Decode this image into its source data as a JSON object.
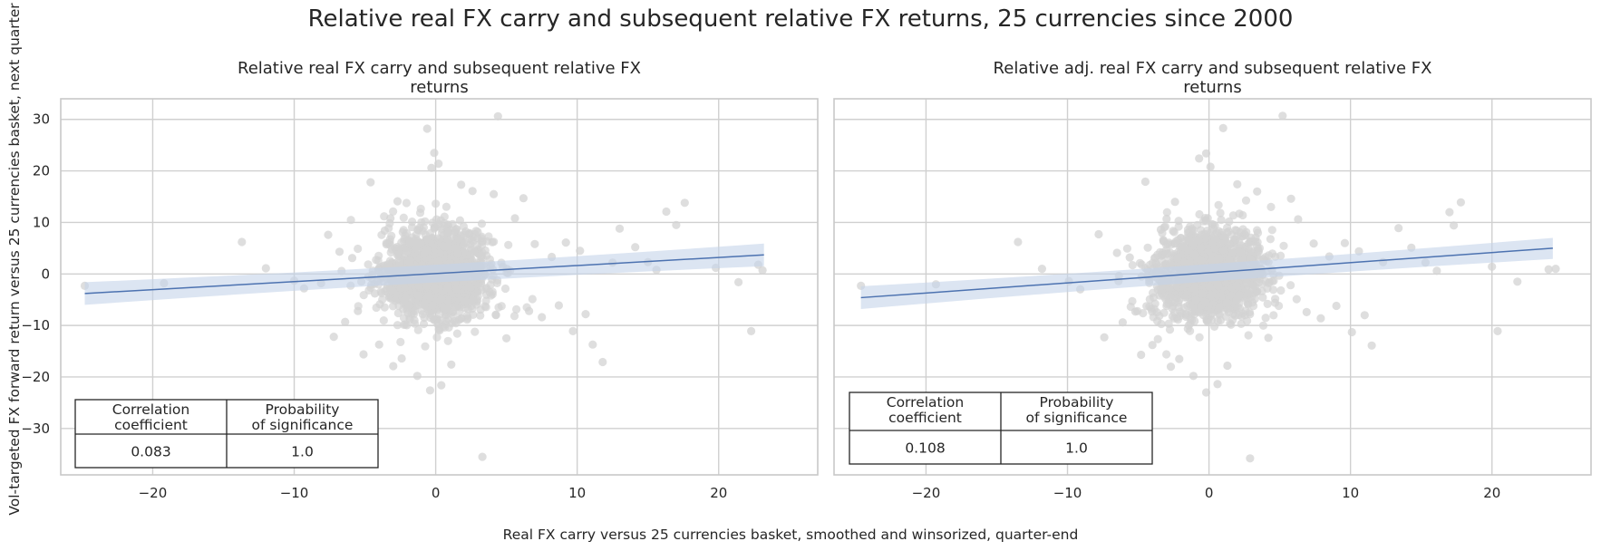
{
  "figure": {
    "suptitle": "Relative real FX carry and subsequent relative FX returns, 25 currencies since 2000",
    "xlabel": "Real FX carry versus 25 currencies basket, smoothed and winsorized, quarter-end",
    "ylabel": "Vol-targeted FX forward return versus 25 currencies basket, next quarter"
  },
  "colors": {
    "points": "#d3d3d3",
    "regression_line": "#4c72b0",
    "confidence_band": "#c5d3ea",
    "grid": "#d0d0d0",
    "spine": "#c8c8c8"
  },
  "chart_data": [
    {
      "type": "scatter",
      "title": [
        "Relative real FX carry and subsequent relative FX",
        "returns"
      ],
      "xlim": [
        -26.5,
        27
      ],
      "ylim": [
        -39,
        34
      ],
      "xticks": [
        -20,
        -10,
        0,
        10,
        20
      ],
      "xtick_labels": [
        "−20",
        "−10",
        "0",
        "10",
        "20"
      ],
      "yticks": [
        -30,
        -20,
        -10,
        0,
        10,
        20,
        30
      ],
      "ytick_labels": [
        "−30",
        "−20",
        "−10",
        "0",
        "10",
        "20",
        "30"
      ],
      "grid": true,
      "regression": {
        "x": [
          -24.8,
          23.2
        ],
        "y": [
          -3.8,
          3.7
        ],
        "band_start": [
          -6.0,
          -1.6
        ],
        "band_end": [
          1.5,
          5.9
        ]
      },
      "stats_table": {
        "headers": [
          [
            "Correlation",
            "coefficient"
          ],
          [
            "Probability",
            "of significance"
          ]
        ],
        "values": [
          "0.083",
          "1.0"
        ]
      },
      "outliers": [
        [
          -24.8,
          -2.3
        ],
        [
          -19.2,
          -1.8
        ],
        [
          -13.7,
          6.2
        ],
        [
          -12.0,
          1.1
        ],
        [
          -10.0,
          -1.3
        ],
        [
          -9.3,
          -2.8
        ],
        [
          -8.1,
          -1.8
        ],
        [
          -7.6,
          7.6
        ],
        [
          -7.2,
          -12.2
        ],
        [
          -6.8,
          4.3
        ],
        [
          -6.4,
          -9.3
        ],
        [
          -5.9,
          3.1
        ],
        [
          -5.5,
          -7.2
        ],
        [
          -5.1,
          -15.6
        ],
        [
          -4.6,
          17.8
        ],
        [
          -4.3,
          -3.8
        ],
        [
          -4.0,
          -13.7
        ],
        [
          -3.6,
          8.4
        ],
        [
          -3.2,
          10.8
        ],
        [
          -3.0,
          -17.9
        ],
        [
          -2.7,
          14.1
        ],
        [
          -2.4,
          -16.4
        ],
        [
          -1.3,
          -19.8
        ],
        [
          -0.6,
          28.2
        ],
        [
          -0.3,
          20.6
        ],
        [
          -0.4,
          -22.6
        ],
        [
          -0.1,
          23.5
        ],
        [
          0.2,
          21.4
        ],
        [
          0.4,
          -21.6
        ],
        [
          1.1,
          -17.6
        ],
        [
          1.8,
          17.3
        ],
        [
          2.6,
          16.1
        ],
        [
          3.3,
          -35.5
        ],
        [
          4.4,
          30.6
        ],
        [
          4.1,
          15.5
        ],
        [
          5.0,
          -12.5
        ],
        [
          5.6,
          10.8
        ],
        [
          6.2,
          14.7
        ],
        [
          6.6,
          -7.2
        ],
        [
          7.0,
          5.8
        ],
        [
          7.5,
          -8.4
        ],
        [
          8.2,
          3.3
        ],
        [
          8.7,
          -6.1
        ],
        [
          9.2,
          6.1
        ],
        [
          9.7,
          -11.1
        ],
        [
          10.2,
          4.5
        ],
        [
          10.6,
          -7.8
        ],
        [
          11.1,
          -13.7
        ],
        [
          11.8,
          -17.1
        ],
        [
          12.5,
          2.2
        ],
        [
          13.0,
          8.8
        ],
        [
          14.1,
          5.2
        ],
        [
          15.0,
          2.3
        ],
        [
          15.6,
          0.8
        ],
        [
          16.3,
          12.1
        ],
        [
          17.0,
          9.5
        ],
        [
          17.6,
          13.8
        ],
        [
          19.8,
          1.2
        ],
        [
          21.4,
          -1.6
        ],
        [
          22.3,
          -11.1
        ],
        [
          22.8,
          1.8
        ],
        [
          23.1,
          0.7
        ]
      ]
    },
    {
      "type": "scatter",
      "title": [
        "Relative adj. real FX carry and subsequent relative FX",
        "returns"
      ],
      "xlim": [
        -26.5,
        27
      ],
      "ylim": [
        -39,
        34
      ],
      "xticks": [
        -20,
        -10,
        0,
        10,
        20
      ],
      "xtick_labels": [
        "−20",
        "−10",
        "0",
        "10",
        "20"
      ],
      "yticks": [
        -30,
        -20,
        -10,
        0,
        10,
        20,
        30
      ],
      "ytick_labels": [
        "",
        "",
        "",
        "",
        "",
        "",
        ""
      ],
      "grid": true,
      "regression": {
        "x": [
          -24.6,
          24.3
        ],
        "y": [
          -4.6,
          5.0
        ],
        "band_start": [
          -6.8,
          -2.4
        ],
        "band_end": [
          2.9,
          7.0
        ]
      },
      "stats_table": {
        "headers": [
          [
            "Correlation",
            "coefficient"
          ],
          [
            "Probability",
            "of significance"
          ]
        ],
        "values": [
          "0.108",
          "1.0"
        ]
      },
      "outliers": [
        [
          -24.6,
          -2.3
        ],
        [
          -19.3,
          -2.0
        ],
        [
          -13.5,
          6.2
        ],
        [
          -11.8,
          1.0
        ],
        [
          -9.9,
          -1.4
        ],
        [
          -9.1,
          -3.0
        ],
        [
          -7.8,
          7.7
        ],
        [
          -7.4,
          -12.3
        ],
        [
          -6.5,
          4.1
        ],
        [
          -6.1,
          -9.4
        ],
        [
          -5.6,
          3.2
        ],
        [
          -5.2,
          -7.3
        ],
        [
          -4.8,
          -15.7
        ],
        [
          -4.5,
          17.9
        ],
        [
          -4.0,
          -13.8
        ],
        [
          -3.4,
          8.6
        ],
        [
          -3.0,
          10.7
        ],
        [
          -2.7,
          -18.0
        ],
        [
          -2.4,
          14.0
        ],
        [
          -2.1,
          -16.5
        ],
        [
          -1.1,
          -19.8
        ],
        [
          -0.7,
          22.4
        ],
        [
          -0.2,
          23.4
        ],
        [
          0.1,
          20.8
        ],
        [
          -0.2,
          -23.0
        ],
        [
          0.6,
          -21.4
        ],
        [
          1.0,
          28.3
        ],
        [
          1.3,
          -17.8
        ],
        [
          2.0,
          17.4
        ],
        [
          2.9,
          -35.8
        ],
        [
          3.4,
          16.0
        ],
        [
          4.2,
          -12.4
        ],
        [
          5.2,
          30.7
        ],
        [
          5.8,
          14.6
        ],
        [
          6.3,
          10.6
        ],
        [
          6.9,
          -7.4
        ],
        [
          7.4,
          5.9
        ],
        [
          7.9,
          -8.6
        ],
        [
          8.5,
          3.4
        ],
        [
          9.0,
          -6.2
        ],
        [
          9.6,
          6.0
        ],
        [
          10.1,
          -11.3
        ],
        [
          10.6,
          4.4
        ],
        [
          11.0,
          -8.0
        ],
        [
          11.5,
          -13.9
        ],
        [
          12.3,
          2.3
        ],
        [
          13.4,
          8.9
        ],
        [
          14.3,
          5.1
        ],
        [
          15.3,
          2.2
        ],
        [
          16.1,
          0.6
        ],
        [
          17.0,
          12.0
        ],
        [
          17.3,
          9.4
        ],
        [
          17.8,
          13.9
        ],
        [
          20.0,
          1.4
        ],
        [
          20.4,
          -11.1
        ],
        [
          21.8,
          -1.5
        ],
        [
          24.0,
          0.9
        ],
        [
          24.5,
          1.0
        ]
      ]
    }
  ]
}
